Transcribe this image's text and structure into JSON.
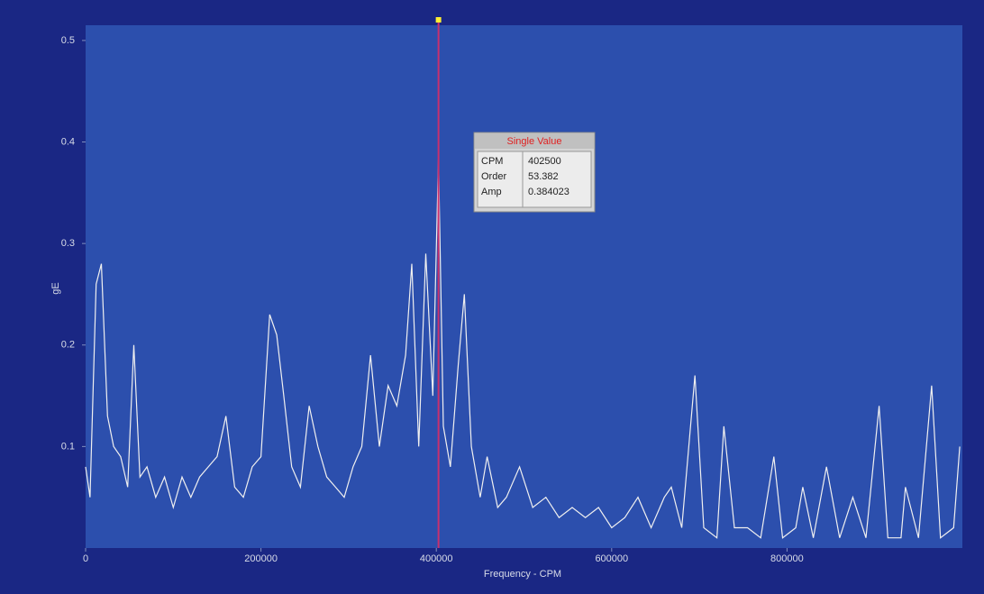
{
  "chart_data": {
    "type": "line",
    "x_label": "Frequency - CPM",
    "y_label": "gE",
    "x": [
      0,
      5000,
      12000,
      18000,
      25000,
      32000,
      40000,
      48000,
      55000,
      62000,
      70000,
      80000,
      90000,
      100000,
      110000,
      120000,
      130000,
      140000,
      150000,
      160000,
      170000,
      180000,
      190000,
      200000,
      210000,
      218000,
      226000,
      235000,
      245000,
      255000,
      265000,
      275000,
      285000,
      295000,
      305000,
      315000,
      325000,
      335000,
      345000,
      355000,
      365000,
      372000,
      380000,
      388000,
      396000,
      402500,
      408000,
      416000,
      425000,
      432000,
      440000,
      450000,
      458000,
      470000,
      480000,
      495000,
      510000,
      525000,
      540000,
      555000,
      570000,
      585000,
      600000,
      615000,
      630000,
      645000,
      660000,
      668000,
      680000,
      695000,
      705000,
      720000,
      728000,
      740000,
      755000,
      770000,
      785000,
      795000,
      810000,
      818000,
      830000,
      845000,
      860000,
      875000,
      890000,
      905000,
      915000,
      930000,
      935000,
      950000,
      965000,
      975000,
      990000,
      997000
    ],
    "series": [
      {
        "color": "#f0f0f0",
        "values": [
          0.08,
          0.05,
          0.26,
          0.28,
          0.13,
          0.1,
          0.09,
          0.06,
          0.2,
          0.07,
          0.08,
          0.05,
          0.07,
          0.04,
          0.07,
          0.05,
          0.07,
          0.08,
          0.09,
          0.13,
          0.06,
          0.05,
          0.08,
          0.09,
          0.23,
          0.21,
          0.15,
          0.08,
          0.06,
          0.14,
          0.1,
          0.07,
          0.06,
          0.05,
          0.08,
          0.1,
          0.19,
          0.1,
          0.16,
          0.14,
          0.19,
          0.28,
          0.1,
          0.29,
          0.15,
          0.384,
          0.12,
          0.08,
          0.18,
          0.25,
          0.1,
          0.05,
          0.09,
          0.04,
          0.05,
          0.08,
          0.04,
          0.05,
          0.03,
          0.04,
          0.03,
          0.04,
          0.02,
          0.03,
          0.05,
          0.02,
          0.05,
          0.06,
          0.02,
          0.17,
          0.02,
          0.01,
          0.12,
          0.02,
          0.02,
          0.01,
          0.09,
          0.01,
          0.02,
          0.06,
          0.01,
          0.08,
          0.01,
          0.05,
          0.01,
          0.14,
          0.01,
          0.01,
          0.06,
          0.01,
          0.16,
          0.01,
          0.02,
          0.1
        ]
      }
    ],
    "xlim": [
      0,
      1000000
    ],
    "ylim": [
      0,
      0.515
    ],
    "xticks": [
      0,
      200000,
      400000,
      600000,
      800000
    ],
    "yticks": [
      0.1,
      0.2,
      0.3,
      0.4,
      0.5
    ],
    "cursor": {
      "title": "Single Value",
      "labels": [
        "CPM",
        "Order",
        "Amp"
      ],
      "values": [
        402500,
        53.382,
        0.384023
      ],
      "color": "#c8306e"
    }
  }
}
